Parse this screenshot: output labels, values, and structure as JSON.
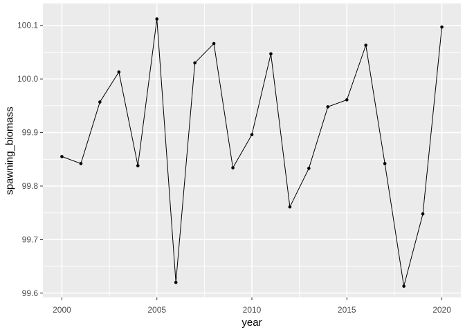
{
  "figure": {
    "background": "#FFFFFF"
  },
  "chart_data": {
    "type": "line",
    "title": "",
    "xlabel": "year",
    "ylabel": "spawning_biomass",
    "x": [
      2000,
      2001,
      2002,
      2003,
      2004,
      2005,
      2006,
      2007,
      2008,
      2009,
      2010,
      2011,
      2012,
      2013,
      2014,
      2015,
      2016,
      2017,
      2018,
      2019,
      2020
    ],
    "values": [
      99.855,
      99.842,
      99.957,
      100.013,
      99.838,
      100.112,
      99.62,
      100.03,
      100.066,
      99.834,
      99.896,
      100.047,
      99.761,
      99.833,
      99.948,
      99.961,
      100.063,
      99.842,
      99.613,
      99.748,
      100.097
    ],
    "xlim": [
      1999,
      2021
    ],
    "ylim": [
      99.592,
      100.141
    ],
    "x_ticks": [
      2000,
      2005,
      2010,
      2015,
      2020
    ],
    "x_tick_labels": [
      "2000",
      "2005",
      "2010",
      "2015",
      "2020"
    ],
    "y_ticks": [
      99.6,
      99.7,
      99.8,
      99.9,
      100.0,
      100.1
    ],
    "y_tick_labels": [
      "99.6",
      "99.7",
      "99.8",
      "99.9",
      "100.0",
      "100.1"
    ],
    "x_minor": [
      2002.5,
      2007.5,
      2012.5,
      2017.5
    ],
    "y_minor": [
      99.65,
      99.75,
      99.85,
      99.95,
      100.05
    ],
    "grid": "major-and-minor",
    "legend": "none",
    "theme": {
      "panel_bg": "#EBEBEB",
      "grid_color": "#FFFFFF",
      "line_color": "#000000",
      "point_color": "#000000",
      "axis_text_color": "#4D4D4D",
      "axis_title_color": "#000000",
      "tick_color": "#333333",
      "outer_bg": "#FFFFFF"
    }
  }
}
